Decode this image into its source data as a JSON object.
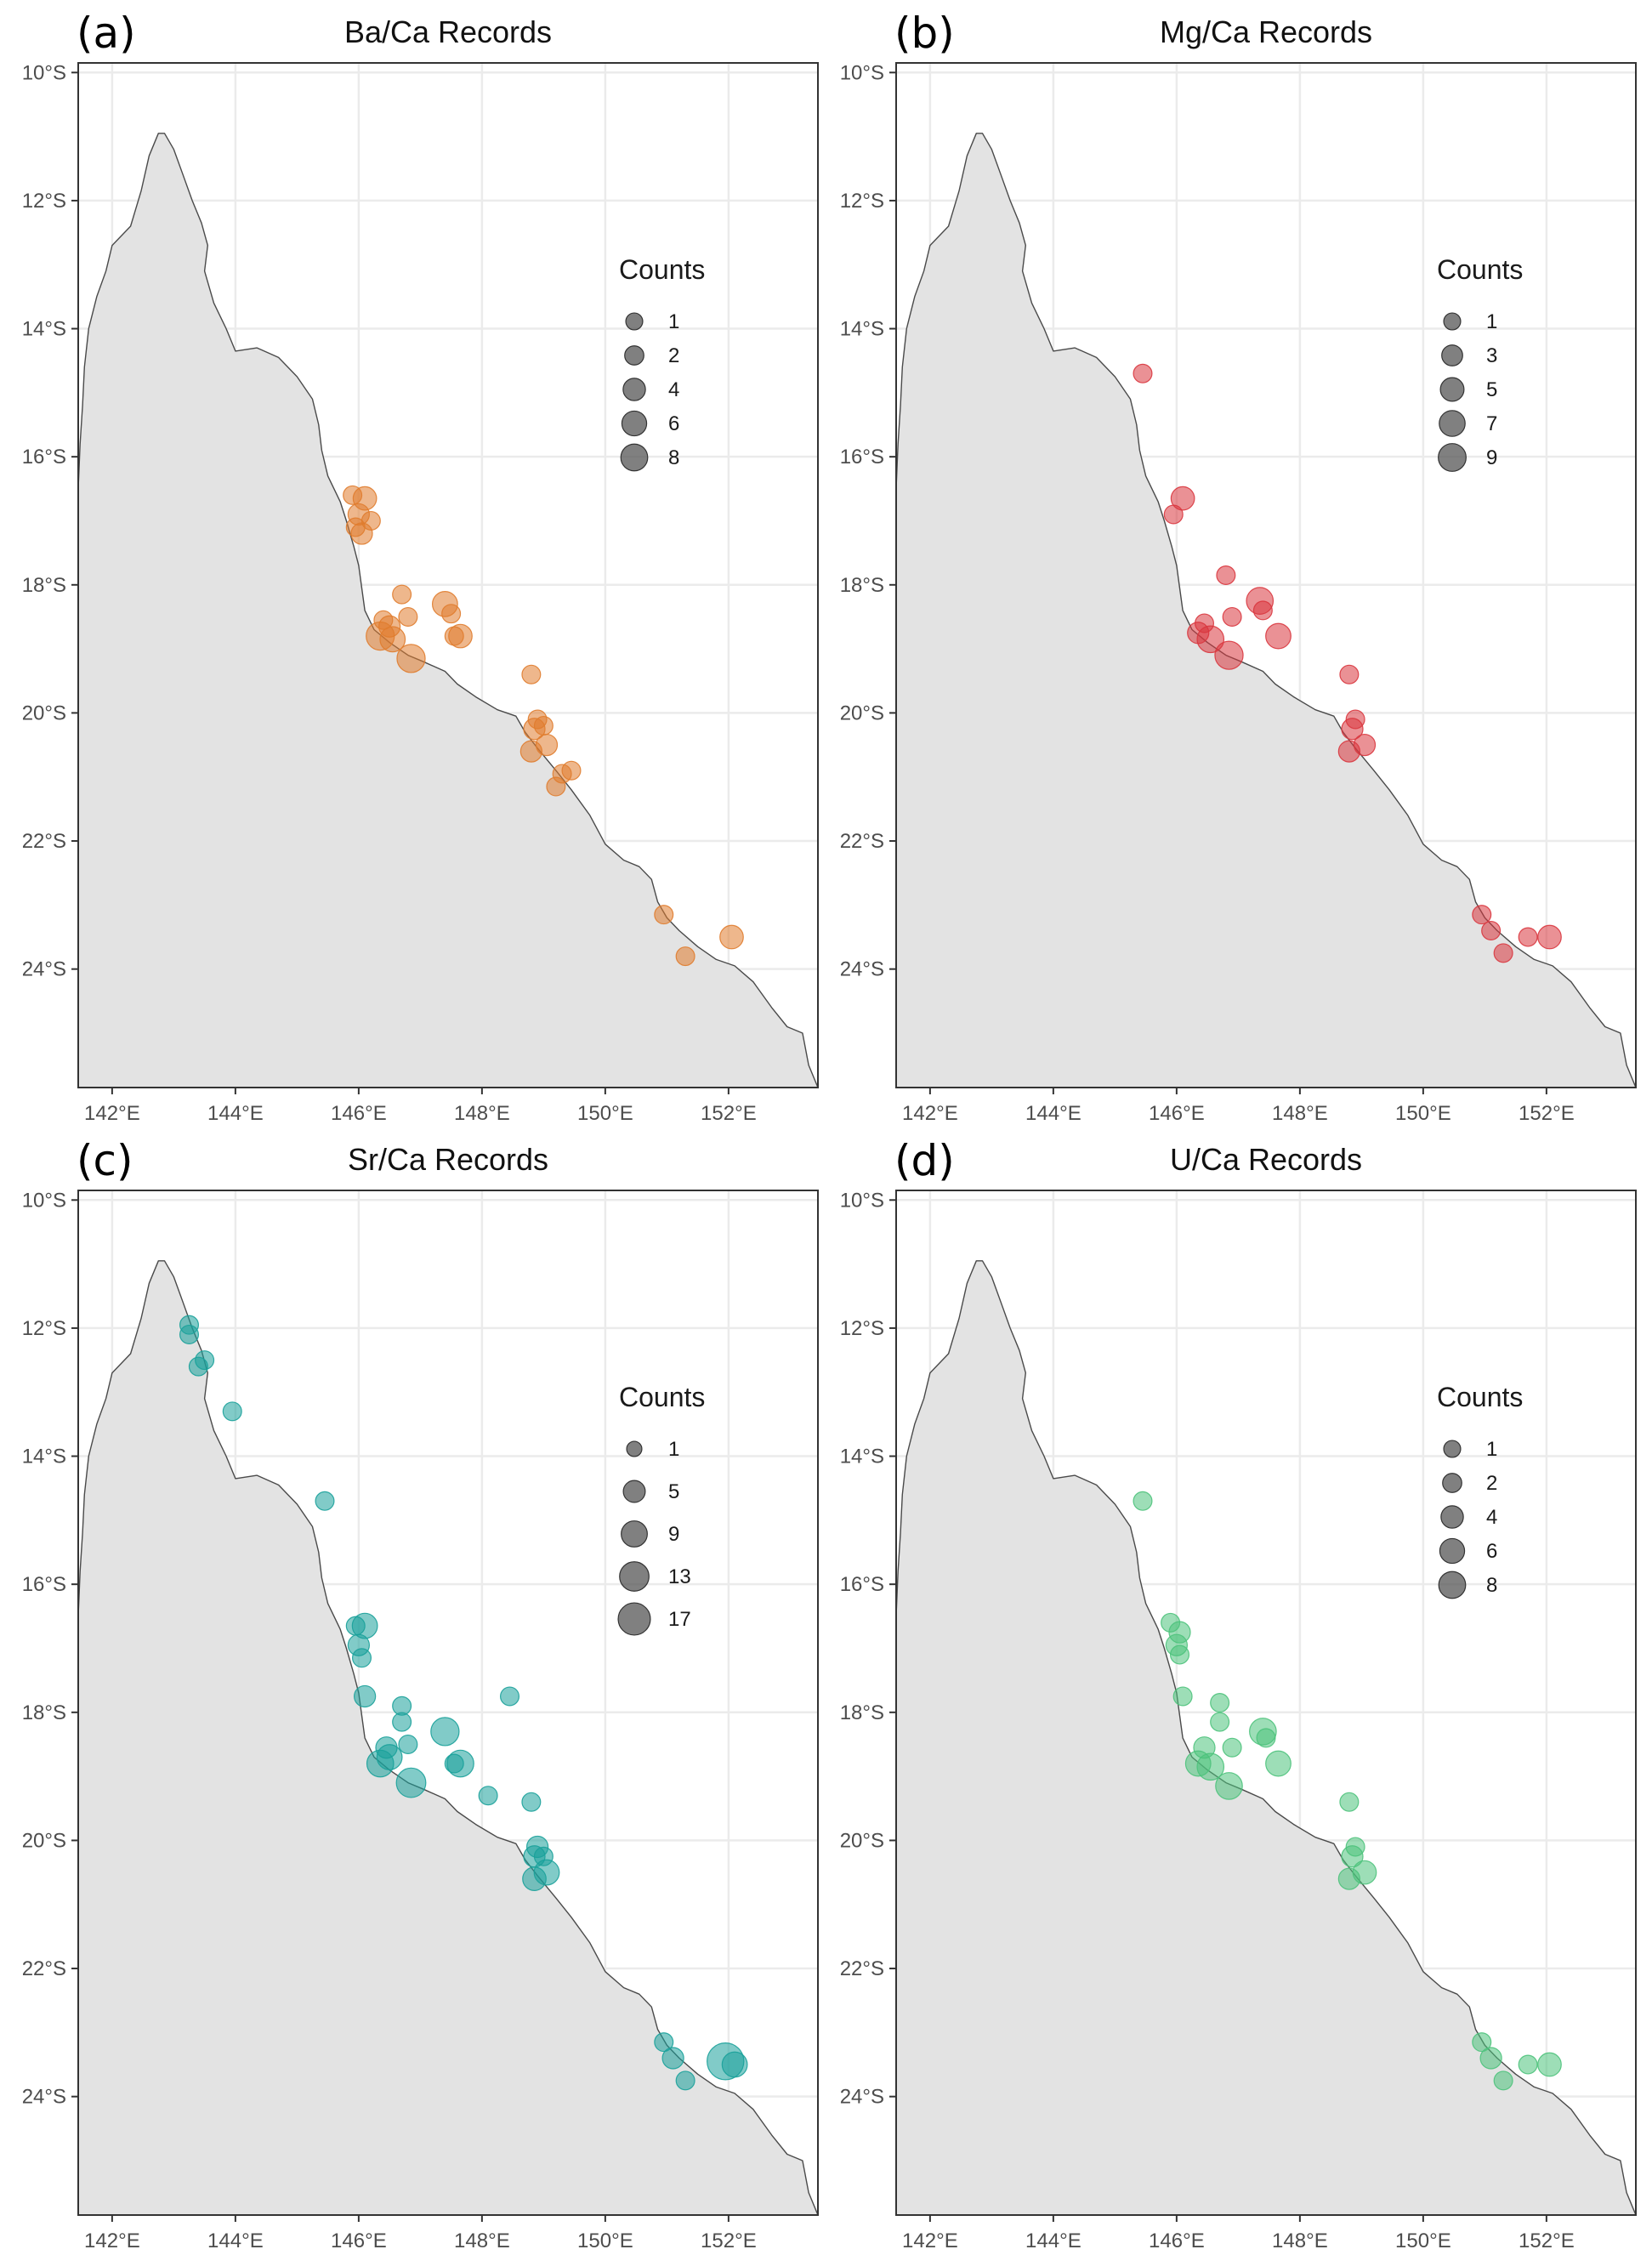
{
  "figure": {
    "land_color": "#e3e3e3",
    "coast_color": "#4a4a4a",
    "grid_color": "#ebebeb",
    "frame_color": "#333333",
    "legend_symbol_color": "#555555",
    "x_ticks": [
      {
        "lon": 142,
        "label": "142°E"
      },
      {
        "lon": 144,
        "label": "144°E"
      },
      {
        "lon": 146,
        "label": "146°E"
      },
      {
        "lon": 148,
        "label": "148°E"
      },
      {
        "lon": 150,
        "label": "150°E"
      },
      {
        "lon": 152,
        "label": "152°E"
      }
    ],
    "y_ticks": [
      {
        "lat": -10,
        "label": "10°S"
      },
      {
        "lat": -12,
        "label": "12°S"
      },
      {
        "lat": -14,
        "label": "14°S"
      },
      {
        "lat": -16,
        "label": "16°S"
      },
      {
        "lat": -18,
        "label": "18°S"
      },
      {
        "lat": -20,
        "label": "20°S"
      },
      {
        "lat": -22,
        "label": "22°S"
      },
      {
        "lat": -24,
        "label": "24°S"
      }
    ],
    "xlim": [
      141.45,
      153.45
    ],
    "ylim": [
      -25.85,
      -9.85
    ],
    "coastline": [
      [
        142.75,
        -10.95
      ],
      [
        142.6,
        -11.3
      ],
      [
        142.47,
        -11.85
      ],
      [
        142.3,
        -12.4
      ],
      [
        142.0,
        -12.7
      ],
      [
        141.9,
        -13.1
      ],
      [
        141.75,
        -13.5
      ],
      [
        141.62,
        -14.0
      ],
      [
        141.55,
        -14.6
      ],
      [
        141.52,
        -15.2
      ],
      [
        141.48,
        -15.8
      ],
      [
        141.45,
        -16.5
      ],
      [
        141.45,
        -25.85
      ],
      [
        153.45,
        -25.85
      ],
      [
        153.3,
        -25.5
      ],
      [
        153.2,
        -25.0
      ],
      [
        152.95,
        -24.9
      ],
      [
        152.7,
        -24.6
      ],
      [
        152.4,
        -24.2
      ],
      [
        152.1,
        -23.95
      ],
      [
        151.8,
        -23.85
      ],
      [
        151.5,
        -23.65
      ],
      [
        151.2,
        -23.4
      ],
      [
        151.0,
        -23.2
      ],
      [
        150.85,
        -22.95
      ],
      [
        150.75,
        -22.6
      ],
      [
        150.55,
        -22.4
      ],
      [
        150.3,
        -22.3
      ],
      [
        150.0,
        -22.05
      ],
      [
        149.75,
        -21.6
      ],
      [
        149.45,
        -21.2
      ],
      [
        149.2,
        -20.9
      ],
      [
        148.9,
        -20.55
      ],
      [
        148.7,
        -20.3
      ],
      [
        148.55,
        -20.05
      ],
      [
        148.25,
        -19.95
      ],
      [
        147.9,
        -19.75
      ],
      [
        147.6,
        -19.55
      ],
      [
        147.4,
        -19.35
      ],
      [
        147.05,
        -19.2
      ],
      [
        146.8,
        -19.1
      ],
      [
        146.5,
        -18.9
      ],
      [
        146.25,
        -18.7
      ],
      [
        146.1,
        -18.4
      ],
      [
        146.05,
        -18.05
      ],
      [
        146.0,
        -17.7
      ],
      [
        145.92,
        -17.4
      ],
      [
        145.8,
        -17.0
      ],
      [
        145.7,
        -16.7
      ],
      [
        145.5,
        -16.3
      ],
      [
        145.4,
        -15.9
      ],
      [
        145.35,
        -15.5
      ],
      [
        145.25,
        -15.1
      ],
      [
        145.0,
        -14.75
      ],
      [
        144.7,
        -14.45
      ],
      [
        144.35,
        -14.3
      ],
      [
        144.0,
        -14.35
      ],
      [
        143.85,
        -14.0
      ],
      [
        143.65,
        -13.6
      ],
      [
        143.5,
        -13.1
      ],
      [
        143.55,
        -12.7
      ],
      [
        143.45,
        -12.35
      ],
      [
        143.3,
        -12.0
      ],
      [
        143.15,
        -11.6
      ],
      [
        143.0,
        -11.2
      ],
      [
        142.85,
        -10.95
      ]
    ]
  },
  "legend": {
    "title": "Counts"
  },
  "panels": [
    {
      "letter": "(a)",
      "title": "Ba/Ca Records",
      "color": "#e07c2e",
      "legend_entries": [
        {
          "count": 1,
          "label": "1"
        },
        {
          "count": 2,
          "label": "2"
        },
        {
          "count": 4,
          "label": "4"
        },
        {
          "count": 6,
          "label": "6"
        },
        {
          "count": 8,
          "label": "8"
        }
      ],
      "points": [
        {
          "lon": 145.9,
          "lat": -16.6,
          "count": 1
        },
        {
          "lon": 146.1,
          "lat": -16.65,
          "count": 3
        },
        {
          "lon": 146.0,
          "lat": -16.9,
          "count": 2
        },
        {
          "lon": 145.95,
          "lat": -17.1,
          "count": 1
        },
        {
          "lon": 146.05,
          "lat": -17.2,
          "count": 2
        },
        {
          "lon": 146.2,
          "lat": -17.0,
          "count": 1
        },
        {
          "lon": 146.7,
          "lat": -18.15,
          "count": 1
        },
        {
          "lon": 147.4,
          "lat": -18.3,
          "count": 4
        },
        {
          "lon": 147.5,
          "lat": -18.45,
          "count": 1
        },
        {
          "lon": 146.4,
          "lat": -18.55,
          "count": 1
        },
        {
          "lon": 146.5,
          "lat": -18.65,
          "count": 2
        },
        {
          "lon": 146.8,
          "lat": -18.5,
          "count": 1
        },
        {
          "lon": 146.35,
          "lat": -18.8,
          "count": 6
        },
        {
          "lon": 146.55,
          "lat": -18.85,
          "count": 4
        },
        {
          "lon": 146.85,
          "lat": -19.15,
          "count": 6
        },
        {
          "lon": 147.65,
          "lat": -18.8,
          "count": 3
        },
        {
          "lon": 147.55,
          "lat": -18.8,
          "count": 1
        },
        {
          "lon": 148.8,
          "lat": -19.4,
          "count": 1
        },
        {
          "lon": 148.9,
          "lat": -20.1,
          "count": 1
        },
        {
          "lon": 148.85,
          "lat": -20.25,
          "count": 2
        },
        {
          "lon": 149.0,
          "lat": -20.2,
          "count": 1
        },
        {
          "lon": 149.05,
          "lat": -20.5,
          "count": 2
        },
        {
          "lon": 148.8,
          "lat": -20.6,
          "count": 2
        },
        {
          "lon": 149.45,
          "lat": -20.9,
          "count": 1
        },
        {
          "lon": 149.3,
          "lat": -20.95,
          "count": 1
        },
        {
          "lon": 149.2,
          "lat": -21.15,
          "count": 1
        },
        {
          "lon": 150.95,
          "lat": -23.15,
          "count": 1
        },
        {
          "lon": 151.3,
          "lat": -23.8,
          "count": 1
        },
        {
          "lon": 152.05,
          "lat": -23.5,
          "count": 3
        }
      ]
    },
    {
      "letter": "(b)",
      "title": "Mg/Ca Records",
      "color": "#d9363e",
      "legend_entries": [
        {
          "count": 1,
          "label": "1"
        },
        {
          "count": 3,
          "label": "3"
        },
        {
          "count": 5,
          "label": "5"
        },
        {
          "count": 7,
          "label": "7"
        },
        {
          "count": 9,
          "label": "9"
        }
      ],
      "points": [
        {
          "lon": 145.45,
          "lat": -14.7,
          "count": 1
        },
        {
          "lon": 146.1,
          "lat": -16.65,
          "count": 3
        },
        {
          "lon": 145.95,
          "lat": -16.9,
          "count": 1
        },
        {
          "lon": 146.8,
          "lat": -17.85,
          "count": 1
        },
        {
          "lon": 147.35,
          "lat": -18.25,
          "count": 5
        },
        {
          "lon": 147.4,
          "lat": -18.4,
          "count": 1
        },
        {
          "lon": 146.45,
          "lat": -18.6,
          "count": 1
        },
        {
          "lon": 146.9,
          "lat": -18.5,
          "count": 1
        },
        {
          "lon": 146.35,
          "lat": -18.75,
          "count": 2
        },
        {
          "lon": 146.55,
          "lat": -18.85,
          "count": 5
        },
        {
          "lon": 146.85,
          "lat": -19.1,
          "count": 6
        },
        {
          "lon": 147.65,
          "lat": -18.8,
          "count": 4
        },
        {
          "lon": 148.8,
          "lat": -19.4,
          "count": 1
        },
        {
          "lon": 148.9,
          "lat": -20.1,
          "count": 1
        },
        {
          "lon": 148.85,
          "lat": -20.25,
          "count": 2
        },
        {
          "lon": 149.05,
          "lat": -20.5,
          "count": 2
        },
        {
          "lon": 148.8,
          "lat": -20.6,
          "count": 2
        },
        {
          "lon": 150.95,
          "lat": -23.15,
          "count": 1
        },
        {
          "lon": 151.1,
          "lat": -23.4,
          "count": 1
        },
        {
          "lon": 151.3,
          "lat": -23.75,
          "count": 1
        },
        {
          "lon": 151.7,
          "lat": -23.5,
          "count": 1
        },
        {
          "lon": 152.05,
          "lat": -23.5,
          "count": 3
        }
      ]
    },
    {
      "letter": "(c)",
      "title": "Sr/Ca Records",
      "color": "#1aa19a",
      "legend_entries": [
        {
          "count": 1,
          "label": "1"
        },
        {
          "count": 5,
          "label": "5"
        },
        {
          "count": 9,
          "label": "9"
        },
        {
          "count": 13,
          "label": "13"
        },
        {
          "count": 17,
          "label": "17"
        }
      ],
      "points": [
        {
          "lon": 143.25,
          "lat": -11.95,
          "count": 1
        },
        {
          "lon": 143.25,
          "lat": -12.1,
          "count": 1
        },
        {
          "lon": 143.4,
          "lat": -12.6,
          "count": 1
        },
        {
          "lon": 143.5,
          "lat": -12.5,
          "count": 1
        },
        {
          "lon": 143.95,
          "lat": -13.3,
          "count": 1
        },
        {
          "lon": 145.45,
          "lat": -14.7,
          "count": 1
        },
        {
          "lon": 146.1,
          "lat": -16.65,
          "count": 4
        },
        {
          "lon": 145.95,
          "lat": -16.65,
          "count": 1
        },
        {
          "lon": 146.0,
          "lat": -16.95,
          "count": 2
        },
        {
          "lon": 146.05,
          "lat": -17.15,
          "count": 1
        },
        {
          "lon": 146.1,
          "lat": -17.75,
          "count": 2
        },
        {
          "lon": 146.7,
          "lat": -17.9,
          "count": 1
        },
        {
          "lon": 146.7,
          "lat": -18.15,
          "count": 1
        },
        {
          "lon": 147.4,
          "lat": -18.3,
          "count": 6
        },
        {
          "lon": 148.45,
          "lat": -17.75,
          "count": 1
        },
        {
          "lon": 146.45,
          "lat": -18.55,
          "count": 2
        },
        {
          "lon": 146.5,
          "lat": -18.7,
          "count": 4
        },
        {
          "lon": 146.35,
          "lat": -18.8,
          "count": 5
        },
        {
          "lon": 146.8,
          "lat": -18.5,
          "count": 1
        },
        {
          "lon": 146.85,
          "lat": -19.1,
          "count": 7
        },
        {
          "lon": 147.65,
          "lat": -18.8,
          "count": 5
        },
        {
          "lon": 147.55,
          "lat": -18.8,
          "count": 1
        },
        {
          "lon": 148.1,
          "lat": -19.3,
          "count": 1
        },
        {
          "lon": 148.8,
          "lat": -19.4,
          "count": 1
        },
        {
          "lon": 148.9,
          "lat": -20.1,
          "count": 2
        },
        {
          "lon": 148.85,
          "lat": -20.25,
          "count": 2
        },
        {
          "lon": 149.0,
          "lat": -20.25,
          "count": 1
        },
        {
          "lon": 149.05,
          "lat": -20.5,
          "count": 4
        },
        {
          "lon": 148.85,
          "lat": -20.6,
          "count": 3
        },
        {
          "lon": 150.95,
          "lat": -23.15,
          "count": 1
        },
        {
          "lon": 151.1,
          "lat": -23.4,
          "count": 2
        },
        {
          "lon": 151.3,
          "lat": -23.75,
          "count": 1
        },
        {
          "lon": 151.95,
          "lat": -23.45,
          "count": 14
        },
        {
          "lon": 152.1,
          "lat": -23.5,
          "count": 4
        }
      ]
    },
    {
      "letter": "(d)",
      "title": "U/Ca Records",
      "color": "#4cc27b",
      "legend_entries": [
        {
          "count": 1,
          "label": "1"
        },
        {
          "count": 2,
          "label": "2"
        },
        {
          "count": 4,
          "label": "4"
        },
        {
          "count": 6,
          "label": "6"
        },
        {
          "count": 8,
          "label": "8"
        }
      ],
      "points": [
        {
          "lon": 145.45,
          "lat": -14.7,
          "count": 1
        },
        {
          "lon": 145.9,
          "lat": -16.6,
          "count": 1
        },
        {
          "lon": 146.05,
          "lat": -16.75,
          "count": 2
        },
        {
          "lon": 146.0,
          "lat": -16.95,
          "count": 2
        },
        {
          "lon": 146.05,
          "lat": -17.1,
          "count": 1
        },
        {
          "lon": 146.1,
          "lat": -17.75,
          "count": 1
        },
        {
          "lon": 146.7,
          "lat": -17.85,
          "count": 1
        },
        {
          "lon": 146.7,
          "lat": -18.15,
          "count": 1
        },
        {
          "lon": 147.4,
          "lat": -18.3,
          "count": 5
        },
        {
          "lon": 147.45,
          "lat": -18.4,
          "count": 1
        },
        {
          "lon": 146.45,
          "lat": -18.55,
          "count": 2
        },
        {
          "lon": 146.9,
          "lat": -18.55,
          "count": 1
        },
        {
          "lon": 146.35,
          "lat": -18.8,
          "count": 4
        },
        {
          "lon": 146.55,
          "lat": -18.85,
          "count": 5
        },
        {
          "lon": 146.85,
          "lat": -19.15,
          "count": 5
        },
        {
          "lon": 147.65,
          "lat": -18.8,
          "count": 4
        },
        {
          "lon": 148.8,
          "lat": -19.4,
          "count": 1
        },
        {
          "lon": 148.9,
          "lat": -20.1,
          "count": 1
        },
        {
          "lon": 148.85,
          "lat": -20.25,
          "count": 2
        },
        {
          "lon": 149.05,
          "lat": -20.5,
          "count": 3
        },
        {
          "lon": 148.8,
          "lat": -20.6,
          "count": 2
        },
        {
          "lon": 150.95,
          "lat": -23.15,
          "count": 1
        },
        {
          "lon": 151.1,
          "lat": -23.4,
          "count": 2
        },
        {
          "lon": 151.3,
          "lat": -23.75,
          "count": 1
        },
        {
          "lon": 151.7,
          "lat": -23.5,
          "count": 1
        },
        {
          "lon": 152.05,
          "lat": -23.5,
          "count": 3
        }
      ]
    }
  ]
}
